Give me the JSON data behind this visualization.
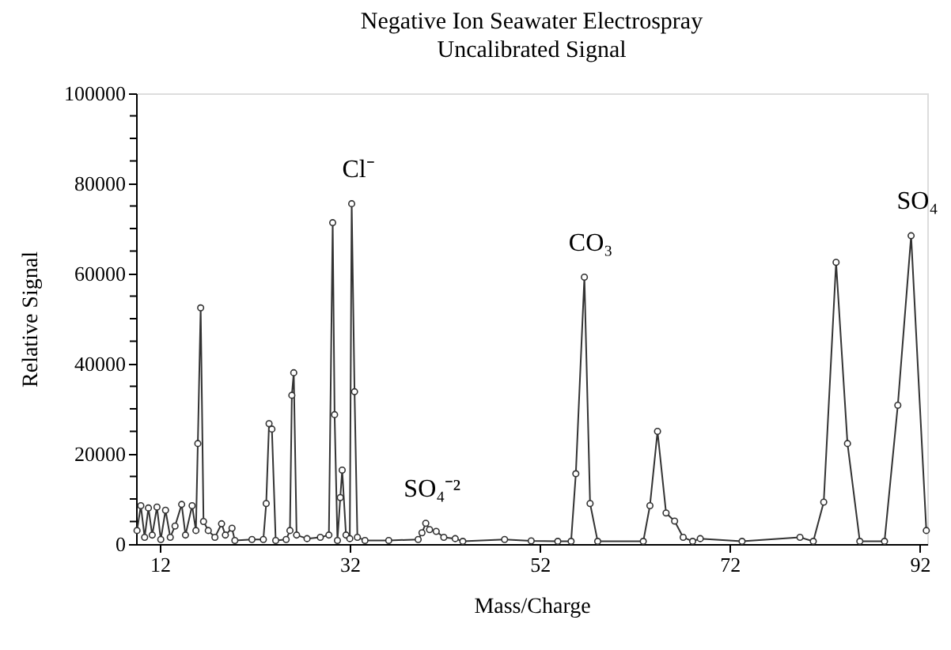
{
  "chart_data": {
    "type": "line",
    "title": "Negative Ion Seawater Electrospray",
    "subtitle": "Uncalibrated Signal",
    "xlabel": "Mass/Charge",
    "ylabel": "Relative Signal",
    "x": [
      9.6,
      10.0,
      10.4,
      10.8,
      11.2,
      11.7,
      12.1,
      12.6,
      13.1,
      13.6,
      14.3,
      14.7,
      15.4,
      15.8,
      16.0,
      16.3,
      16.6,
      17.1,
      17.8,
      18.5,
      18.9,
      19.6,
      19.9,
      21.7,
      22.9,
      23.2,
      23.5,
      23.8,
      24.2,
      25.3,
      25.7,
      25.9,
      26.1,
      26.4,
      27.5,
      28.9,
      29.8,
      30.2,
      30.4,
      30.7,
      31.0,
      31.2,
      31.6,
      32.0,
      32.2,
      32.5,
      32.8,
      33.6,
      36.1,
      39.2,
      39.6,
      40.0,
      40.4,
      41.1,
      41.9,
      43.1,
      43.9,
      48.3,
      51.1,
      53.9,
      55.3,
      55.8,
      56.7,
      57.3,
      58.1,
      62.9,
      63.6,
      64.4,
      65.3,
      66.2,
      67.1,
      68.1,
      68.9,
      73.3,
      79.4,
      80.8,
      81.9,
      83.2,
      84.4,
      85.7,
      88.3,
      89.7,
      91.1,
      92.7
    ],
    "series": [
      {
        "color": "#333333",
        "values": [
          3000,
          8500,
          1500,
          8000,
          2000,
          8200,
          1000,
          7500,
          1500,
          4000,
          8800,
          2000,
          8500,
          3000,
          22300,
          52400,
          5000,
          3000,
          1500,
          4500,
          2000,
          3500,
          800,
          1000,
          1000,
          9000,
          26700,
          25500,
          800,
          1000,
          3000,
          33000,
          38000,
          2000,
          1200,
          1500,
          2000,
          71300,
          28700,
          800,
          10300,
          16400,
          2000,
          1200,
          75500,
          33800,
          1500,
          800,
          800,
          1000,
          2500,
          4600,
          3200,
          2800,
          1500,
          1200,
          600,
          1000,
          700,
          600,
          600,
          15600,
          59200,
          9000,
          600,
          600,
          8500,
          25000,
          6900,
          5100,
          1500,
          600,
          1200,
          600,
          1500,
          600,
          9300,
          62500,
          22300,
          600,
          600,
          30800,
          68400,
          3000
        ]
      }
    ],
    "xlim": [
      9.5,
      92.8
    ],
    "xticks": [
      12,
      32,
      52,
      72,
      92
    ],
    "ylim": [
      0,
      100000
    ],
    "yticks": [
      0,
      {
        "value": 5000,
        "label": null
      },
      {
        "value": 10000,
        "label": null
      },
      {
        "value": 15000,
        "label": null
      },
      20000,
      {
        "value": 25000,
        "label": null
      },
      {
        "value": 30000,
        "label": null
      },
      {
        "value": 35000,
        "label": null
      },
      40000,
      {
        "value": 45000,
        "label": null
      },
      {
        "value": 50000,
        "label": null
      },
      {
        "value": 55000,
        "label": null
      },
      60000,
      {
        "value": 65000,
        "label": null
      },
      {
        "value": 70000,
        "label": null
      },
      {
        "value": 75000,
        "label": null
      },
      80000,
      {
        "value": 85000,
        "label": null
      },
      {
        "value": 90000,
        "label": null
      },
      {
        "value": 95000,
        "label": null
      },
      100000
    ],
    "annotations": [
      {
        "text": "Cl⁻",
        "x": 32.2,
        "y": 75500
      },
      {
        "text": "CO₃",
        "x": 56.7,
        "y": 59200
      },
      {
        "text": "SO₄⁻²",
        "x": 40.0,
        "y": 4600
      },
      {
        "text": "SO₄",
        "x": 91.1,
        "y": 68400
      }
    ],
    "marker": "circle",
    "line_style": "solid",
    "grid": false
  }
}
